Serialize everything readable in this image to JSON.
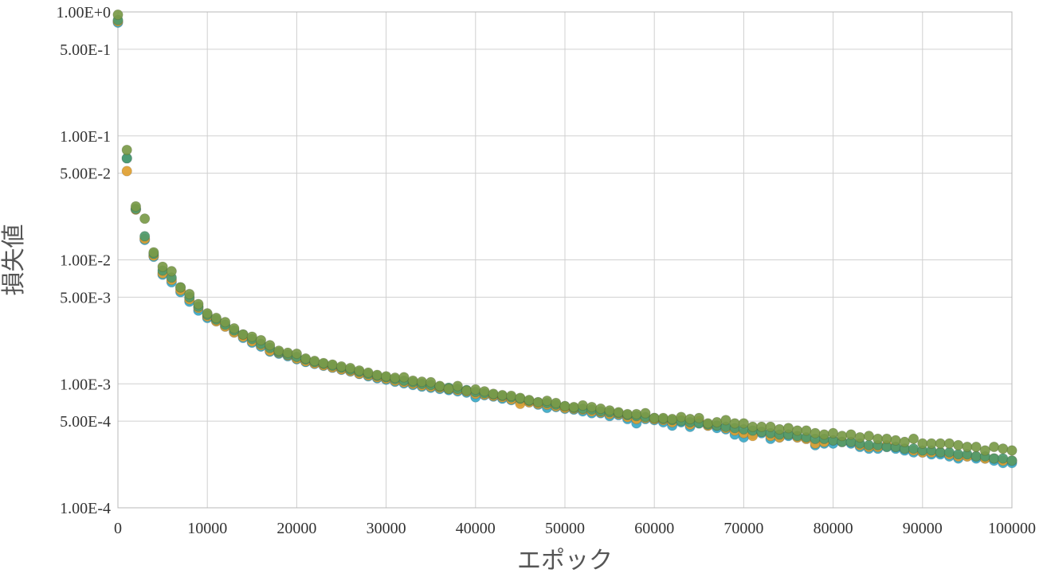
{
  "chart_data": {
    "type": "scatter",
    "title": "",
    "xlabel": "エポック",
    "ylabel": "損失値",
    "xlim": [
      0,
      100000
    ],
    "ylim": [
      0.0001,
      1
    ],
    "y_scale": "log",
    "grid": true,
    "x_ticks": [
      {
        "value": 0,
        "label": "0"
      },
      {
        "value": 10000,
        "label": "10000"
      },
      {
        "value": 20000,
        "label": "20000"
      },
      {
        "value": 30000,
        "label": "30000"
      },
      {
        "value": 40000,
        "label": "40000"
      },
      {
        "value": 50000,
        "label": "50000"
      },
      {
        "value": 60000,
        "label": "60000"
      },
      {
        "value": 70000,
        "label": "70000"
      },
      {
        "value": 80000,
        "label": "80000"
      },
      {
        "value": 90000,
        "label": "90000"
      },
      {
        "value": 100000,
        "label": "100000"
      }
    ],
    "y_ticks": [
      {
        "value": 1,
        "label": "1.00E+0"
      },
      {
        "value": 0.5,
        "label": "5.00E-1"
      },
      {
        "value": 0.1,
        "label": "1.00E-1"
      },
      {
        "value": 0.05,
        "label": "5.00E-2"
      },
      {
        "value": 0.01,
        "label": "1.00E-2"
      },
      {
        "value": 0.005,
        "label": "5.00E-3"
      },
      {
        "value": 0.001,
        "label": "1.00E-3"
      },
      {
        "value": 0.0005,
        "label": "5.00E-4"
      },
      {
        "value": 0.0001,
        "label": "1.00E-4"
      }
    ],
    "x": [
      0,
      1000,
      2000,
      3000,
      4000,
      5000,
      6000,
      7000,
      8000,
      9000,
      10000,
      11000,
      12000,
      13000,
      14000,
      15000,
      16000,
      17000,
      18000,
      19000,
      20000,
      21000,
      22000,
      23000,
      24000,
      25000,
      26000,
      27000,
      28000,
      29000,
      30000,
      31000,
      32000,
      33000,
      34000,
      35000,
      36000,
      37000,
      38000,
      39000,
      40000,
      41000,
      42000,
      43000,
      44000,
      45000,
      46000,
      47000,
      48000,
      49000,
      50000,
      51000,
      52000,
      53000,
      54000,
      55000,
      56000,
      57000,
      58000,
      59000,
      60000,
      61000,
      62000,
      63000,
      64000,
      65000,
      66000,
      67000,
      68000,
      69000,
      70000,
      71000,
      72000,
      73000,
      74000,
      75000,
      76000,
      77000,
      78000,
      79000,
      80000,
      81000,
      82000,
      83000,
      84000,
      85000,
      86000,
      87000,
      88000,
      89000,
      90000,
      91000,
      92000,
      93000,
      94000,
      95000,
      96000,
      97000,
      98000,
      99000,
      100000
    ],
    "series": [
      {
        "color": "#3aa9c7",
        "values": [
          0.82,
          0.066,
          0.0255,
          0.0145,
          0.0106,
          0.0076,
          0.0066,
          0.0055,
          0.0046,
          0.0039,
          0.0034,
          0.0032,
          0.0029,
          0.0026,
          0.00235,
          0.00215,
          0.002,
          0.00182,
          0.00175,
          0.00167,
          0.00158,
          0.0015,
          0.00145,
          0.0014,
          0.00135,
          0.0013,
          0.00126,
          0.0012,
          0.00115,
          0.00111,
          0.00108,
          0.00104,
          0.00101,
          0.00098,
          0.00095,
          0.00093,
          0.00091,
          0.00089,
          0.00087,
          0.00085,
          0.00078,
          0.00081,
          0.00079,
          0.00076,
          0.00074,
          0.00072,
          0.00071,
          0.00068,
          0.00064,
          0.00065,
          0.00063,
          0.00062,
          0.0006,
          0.00058,
          0.00058,
          0.00055,
          0.00056,
          0.00052,
          0.00048,
          0.00052,
          0.00051,
          0.00049,
          0.00046,
          0.00049,
          0.00045,
          0.00048,
          0.00046,
          0.00044,
          0.00043,
          0.00039,
          0.00037,
          0.00039,
          0.0004,
          0.00036,
          0.00037,
          0.00038,
          0.00037,
          0.00036,
          0.00032,
          0.00033,
          0.00033,
          0.00034,
          0.00033,
          0.00031,
          0.0003,
          0.0003,
          0.00031,
          0.0003,
          0.00029,
          0.00028,
          0.00028,
          0.00027,
          0.00027,
          0.00026,
          0.00025,
          0.00026,
          0.00025,
          0.00025,
          0.00024,
          0.00023,
          0.00023
        ]
      },
      {
        "color": "#e0a030",
        "values": [
          0.84,
          0.052,
          0.0255,
          0.0148,
          0.0108,
          0.0078,
          0.0069,
          0.0057,
          0.0048,
          0.0041,
          0.0035,
          0.0032,
          0.0029,
          0.0026,
          0.0024,
          0.0022,
          0.00205,
          0.00185,
          0.00178,
          0.0017,
          0.0016,
          0.00152,
          0.00146,
          0.00141,
          0.00136,
          0.00131,
          0.00127,
          0.00121,
          0.00117,
          0.00113,
          0.0011,
          0.00106,
          0.00103,
          0.001,
          0.00097,
          0.00095,
          0.00093,
          0.00091,
          0.00089,
          0.00087,
          0.00083,
          0.00082,
          0.0008,
          0.00078,
          0.00075,
          0.00069,
          0.00071,
          0.00069,
          0.00068,
          0.00066,
          0.00064,
          0.00063,
          0.00062,
          0.0006,
          0.00059,
          0.00057,
          0.00057,
          0.00054,
          0.00052,
          0.00053,
          0.00052,
          0.00051,
          0.00049,
          0.00051,
          0.00047,
          0.0005,
          0.00046,
          0.00046,
          0.00044,
          0.00042,
          0.0004,
          0.00038,
          0.00041,
          0.00038,
          0.00037,
          0.00039,
          0.00037,
          0.00036,
          0.00033,
          0.00034,
          0.00035,
          0.00034,
          0.00034,
          0.00032,
          0.00031,
          0.00031,
          0.00032,
          0.00031,
          0.0003,
          0.00029,
          0.00028,
          0.00028,
          0.00028,
          0.00027,
          0.00026,
          0.00026,
          0.00026,
          0.00025,
          0.00025,
          0.00024,
          0.00024
        ]
      },
      {
        "color": "#4e9a6e",
        "values": [
          0.86,
          0.066,
          0.0258,
          0.0155,
          0.0112,
          0.0082,
          0.0072,
          0.006,
          0.005,
          0.0042,
          0.0036,
          0.0033,
          0.003,
          0.0027,
          0.0025,
          0.0023,
          0.0021,
          0.00195,
          0.0018,
          0.00172,
          0.00165,
          0.00157,
          0.0015,
          0.00145,
          0.0014,
          0.00135,
          0.0013,
          0.00125,
          0.0012,
          0.00116,
          0.00113,
          0.00109,
          0.00106,
          0.00103,
          0.001,
          0.00098,
          0.00095,
          0.00093,
          0.00091,
          0.00089,
          0.00086,
          0.00084,
          0.00082,
          0.0008,
          0.00078,
          0.00076,
          0.00073,
          0.00071,
          0.0007,
          0.00068,
          0.00066,
          0.00064,
          0.00063,
          0.00062,
          0.0006,
          0.00059,
          0.00058,
          0.00056,
          0.00055,
          0.00054,
          0.00053,
          0.00052,
          0.00051,
          0.0005,
          0.00049,
          0.00048,
          0.00047,
          0.00046,
          0.00045,
          0.00044,
          0.00043,
          0.00042,
          0.00041,
          0.0004,
          0.00039,
          0.00039,
          0.00038,
          0.00037,
          0.00036,
          0.00036,
          0.00035,
          0.00034,
          0.00034,
          0.00033,
          0.00032,
          0.00032,
          0.00031,
          0.00031,
          0.0003,
          0.0003,
          0.00029,
          0.00029,
          0.00028,
          0.00028,
          0.00027,
          0.00027,
          0.00026,
          0.00026,
          0.00025,
          0.00025,
          0.00024
        ]
      },
      {
        "color": "#7a9a48",
        "values": [
          0.95,
          0.077,
          0.027,
          0.0215,
          0.0115,
          0.0088,
          0.0081,
          0.006,
          0.0053,
          0.0044,
          0.0037,
          0.0034,
          0.00315,
          0.0028,
          0.0025,
          0.0024,
          0.00225,
          0.00205,
          0.00185,
          0.00178,
          0.00175,
          0.0016,
          0.00153,
          0.00147,
          0.00143,
          0.00138,
          0.00134,
          0.00128,
          0.00123,
          0.00118,
          0.00115,
          0.00112,
          0.00113,
          0.00106,
          0.00104,
          0.00103,
          0.00096,
          0.00091,
          0.00096,
          0.00088,
          0.0009,
          0.00087,
          0.00083,
          0.00081,
          0.0008,
          0.00077,
          0.00074,
          0.00071,
          0.00073,
          0.0007,
          0.00066,
          0.00065,
          0.00067,
          0.00065,
          0.00063,
          0.00061,
          0.00059,
          0.00057,
          0.00057,
          0.00058,
          0.00053,
          0.00053,
          0.00052,
          0.00054,
          0.00052,
          0.00053,
          0.00048,
          0.00049,
          0.00051,
          0.00048,
          0.00048,
          0.00045,
          0.00045,
          0.00045,
          0.00043,
          0.00044,
          0.00042,
          0.00042,
          0.0004,
          0.00039,
          0.0004,
          0.00038,
          0.00039,
          0.00037,
          0.00038,
          0.00036,
          0.00036,
          0.00035,
          0.00034,
          0.00036,
          0.00033,
          0.00033,
          0.00033,
          0.00033,
          0.00032,
          0.00031,
          0.00031,
          0.00029,
          0.00031,
          0.0003,
          0.00029
        ]
      }
    ]
  }
}
